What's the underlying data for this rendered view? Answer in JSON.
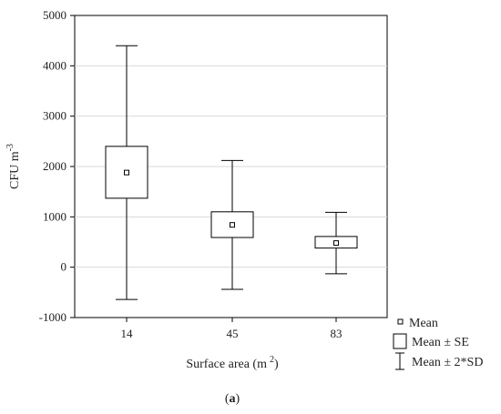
{
  "chart_data": {
    "type": "boxplot",
    "xlabel": "Surface area (m",
    "xlabel_superscript": "2",
    "xlabel_suffix": ")",
    "ylabel": "CFU m",
    "ylabel_superscript": "-3",
    "categories": [
      "14",
      "45",
      "83"
    ],
    "ylim": [
      -1000,
      5000
    ],
    "yticks": [
      "-1000",
      "0",
      "1000",
      "2000",
      "3000",
      "4000",
      "5000"
    ],
    "yticks_values": [
      -1000,
      0,
      1000,
      2000,
      3000,
      4000,
      5000
    ],
    "grid": true,
    "series": [
      {
        "category": "14",
        "mean": 1880,
        "se_low": 1370,
        "se_high": 2400,
        "sd2_low": -640,
        "sd2_high": 4400
      },
      {
        "category": "45",
        "mean": 840,
        "se_low": 590,
        "se_high": 1100,
        "sd2_low": -440,
        "sd2_high": 2120
      },
      {
        "category": "83",
        "mean": 480,
        "se_low": 380,
        "se_high": 610,
        "sd2_low": -130,
        "sd2_high": 1090
      }
    ],
    "legend": {
      "position": "bottom-right",
      "items": [
        {
          "marker": "small-square",
          "label": "Mean"
        },
        {
          "marker": "box",
          "label": "Mean ± SE"
        },
        {
          "marker": "whisker",
          "label": "Mean ± 2*SD"
        }
      ]
    }
  },
  "caption": {
    "open": "(",
    "letter": "a",
    "close": ")"
  }
}
